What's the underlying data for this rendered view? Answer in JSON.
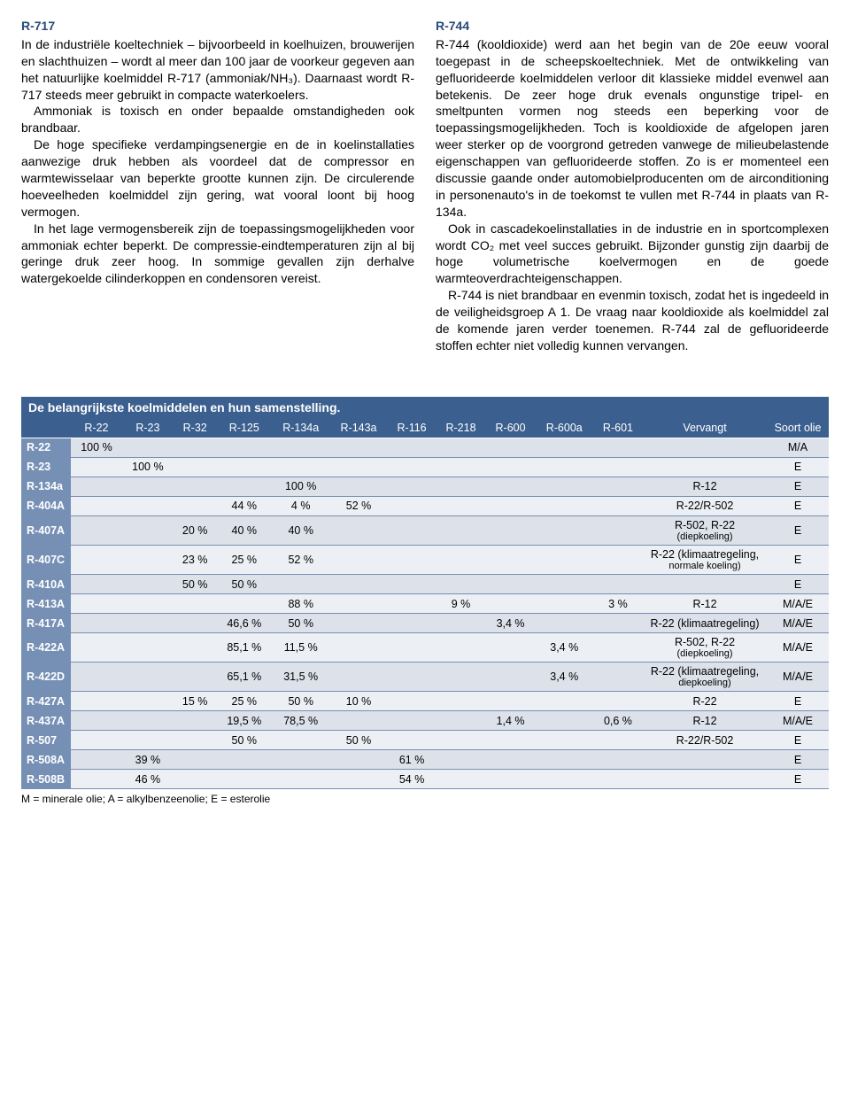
{
  "left": {
    "title": "R-717",
    "p1": "In de industriële koeltechniek – bijvoorbeeld in koelhuizen, brouwerijen en slachthuizen – wordt al meer dan 100 jaar de voorkeur gegeven aan het natuurlijke koelmiddel R-717 (ammoniak/NH₃). Daarnaast wordt R-717 steeds meer gebruikt in compacte waterkoelers.",
    "p2": "Ammoniak is toxisch en onder bepaalde omstandigheden ook brandbaar.",
    "p3": "De hoge specifieke verdampingsenergie en de in koelinstallaties aanwezige druk hebben als voordeel dat de compressor en warmtewisselaar van beperkte grootte kunnen zijn. De circulerende hoeveelheden koelmiddel zijn gering, wat vooral loont bij hoog vermogen.",
    "p4": "In het lage vermogensbereik zijn de toepassingsmogelijkheden voor ammoniak echter beperkt. De compressie-eindtemperaturen zijn al bij geringe druk zeer hoog. In sommige gevallen zijn derhalve watergekoelde cilinderkoppen en condensoren vereist."
  },
  "right": {
    "title": "R-744",
    "p1": "R-744 (kooldioxide) werd aan het begin van de 20e eeuw vooral toegepast in de scheepskoeltechniek. Met de ontwikkeling van gefluorideerde koelmiddelen verloor dit klassieke middel evenwel aan betekenis. De zeer hoge druk evenals ongunstige tripel- en smeltpunten vormen nog steeds een beperking voor de toepassingsmogelijkheden. Toch is kooldioxide de afgelopen jaren weer sterker op de voorgrond getreden vanwege de milieubelastende eigenschappen van gefluorideerde stoffen. Zo is er momenteel een discussie gaande onder automobielproducenten om de airconditioning in personenauto's in de toekomst te vullen met R-744 in plaats van R-134a.",
    "p2": "Ook in cascadekoelinstallaties in de industrie en in sportcomplexen wordt CO₂ met veel succes gebruikt. Bijzonder gunstig zijn daarbij de hoge volumetrische koelvermogen en de goede warmteoverdrachteigenschappen.",
    "p3": "R-744 is niet brandbaar en evenmin toxisch, zodat het is ingedeeld in de veiligheidsgroep A 1. De vraag naar kooldioxide als koelmiddel zal de komende jaren verder toenemen. R-744 zal de gefluorideerde stoffen echter niet volledig kunnen vervangen."
  },
  "table": {
    "title": "De belangrijkste koelmiddelen en hun samenstelling.",
    "columns": [
      "R-22",
      "R-23",
      "R-32",
      "R-125",
      "R-134a",
      "R-143a",
      "R-116",
      "R-218",
      "R-600",
      "R-600a",
      "R-601",
      "Vervangt",
      "Soort olie"
    ],
    "rows": [
      {
        "label": "R-22",
        "cells": [
          "100 %",
          "",
          "",
          "",
          "",
          "",
          "",
          "",
          "",
          "",
          "",
          "",
          "M/A"
        ]
      },
      {
        "label": "R-23",
        "cells": [
          "",
          "100 %",
          "",
          "",
          "",
          "",
          "",
          "",
          "",
          "",
          "",
          "",
          "E"
        ]
      },
      {
        "label": "R-134a",
        "cells": [
          "",
          "",
          "",
          "",
          "100 %",
          "",
          "",
          "",
          "",
          "",
          "",
          "R-12",
          "E"
        ]
      },
      {
        "label": "R-404A",
        "cells": [
          "",
          "",
          "",
          "44 %",
          "4 %",
          "52 %",
          "",
          "",
          "",
          "",
          "",
          "R-22/R-502",
          "E"
        ]
      },
      {
        "label": "R-407A",
        "cells": [
          "",
          "",
          "20 %",
          "40 %",
          "40 %",
          "",
          "",
          "",
          "",
          "",
          "",
          "R-502, R-22\n(diepkoeling)",
          "E"
        ]
      },
      {
        "label": "R-407C",
        "cells": [
          "",
          "",
          "23 %",
          "25 %",
          "52 %",
          "",
          "",
          "",
          "",
          "",
          "",
          "R-22 (klimaatregeling,\nnormale koeling)",
          "E"
        ]
      },
      {
        "label": "R-410A",
        "cells": [
          "",
          "",
          "50 %",
          "50 %",
          "",
          "",
          "",
          "",
          "",
          "",
          "",
          "",
          "E"
        ]
      },
      {
        "label": "R-413A",
        "cells": [
          "",
          "",
          "",
          "",
          "88 %",
          "",
          "",
          "9 %",
          "",
          "",
          "3 %",
          "R-12",
          "M/A/E"
        ]
      },
      {
        "label": "R-417A",
        "cells": [
          "",
          "",
          "",
          "46,6 %",
          "50 %",
          "",
          "",
          "",
          "3,4 %",
          "",
          "",
          "R-22 (klimaatregeling)",
          "M/A/E"
        ]
      },
      {
        "label": "R-422A",
        "cells": [
          "",
          "",
          "",
          "85,1 %",
          "11,5 %",
          "",
          "",
          "",
          "",
          "3,4 %",
          "",
          "R-502, R-22\n(diepkoeling)",
          "M/A/E"
        ]
      },
      {
        "label": "R-422D",
        "cells": [
          "",
          "",
          "",
          "65,1 %",
          "31,5 %",
          "",
          "",
          "",
          "",
          "3,4 %",
          "",
          "R-22 (klimaatregeling,\ndiepkoeling)",
          "M/A/E"
        ]
      },
      {
        "label": "R-427A",
        "cells": [
          "",
          "",
          "15 %",
          "25 %",
          "50 %",
          "10 %",
          "",
          "",
          "",
          "",
          "",
          "R-22",
          "E"
        ]
      },
      {
        "label": "R-437A",
        "cells": [
          "",
          "",
          "",
          "19,5 %",
          "78,5 %",
          "",
          "",
          "",
          "1,4 %",
          "",
          "0,6 %",
          "R-12",
          "M/A/E"
        ]
      },
      {
        "label": "R-507",
        "cells": [
          "",
          "",
          "",
          "50 %",
          "",
          "50 %",
          "",
          "",
          "",
          "",
          "",
          "R-22/R-502",
          "E"
        ]
      },
      {
        "label": "R-508A",
        "cells": [
          "",
          "39 %",
          "",
          "",
          "",
          "",
          "61 %",
          "",
          "",
          "",
          "",
          "",
          "E"
        ]
      },
      {
        "label": "R-508B",
        "cells": [
          "",
          "46 %",
          "",
          "",
          "",
          "",
          "54 %",
          "",
          "",
          "",
          "",
          "",
          "E"
        ]
      }
    ],
    "legend": "M = minerale olie; A = alkylbenzeenolie; E = esterolie",
    "colors": {
      "header_bg": "#3b5f8e",
      "header_fg": "#ffffff",
      "rowlabel_bg": "#7690b5",
      "rowlabel_fg": "#ffffff",
      "row_odd_bg": "#dce1ea",
      "row_even_bg": "#eceff4",
      "border": "#7a8fb0"
    }
  }
}
